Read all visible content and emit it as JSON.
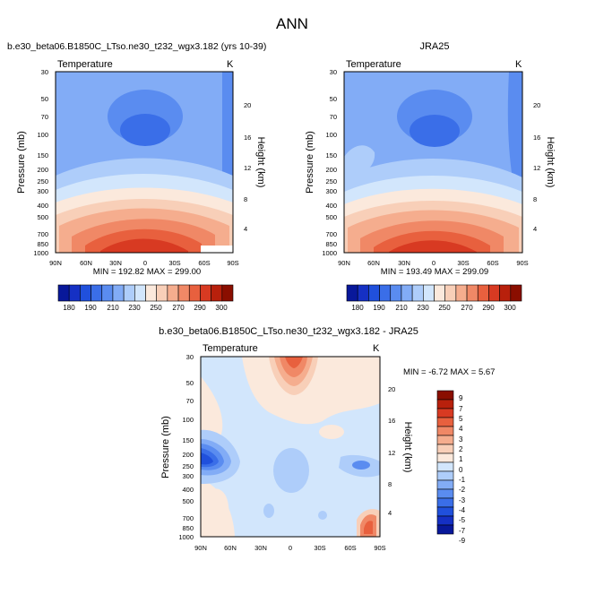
{
  "figure_title": "ANN",
  "chart_data": [
    {
      "type": "heatmap",
      "title": "b.e30_beta06.B1850C_LTso.ne30_t232_wgx3.182 (yrs 10-39)",
      "subtitle": "Temperature",
      "units": "K",
      "ylabel": "Pressure (mb)",
      "y2label": "Height (km)",
      "x_ticks": [
        "90N",
        "60N",
        "30N",
        "0",
        "30S",
        "60S",
        "90S"
      ],
      "x_range": [
        90,
        -90
      ],
      "y_ticks": [
        "30",
        "50",
        "70",
        "100",
        "150",
        "200",
        "250",
        "300",
        "400",
        "500",
        "700",
        "850",
        "1000"
      ],
      "y_range_mb": [
        30,
        1000
      ],
      "y2_ticks": [
        "20",
        "16",
        "12",
        "8",
        "4"
      ],
      "stats": "MIN = 192.82  MAX = 299.00",
      "min": 192.82,
      "max": 299.0
    },
    {
      "type": "heatmap",
      "title": "JRA25",
      "subtitle": "Temperature",
      "units": "K",
      "ylabel": "Pressure (mb)",
      "y2label": "Height (km)",
      "x_ticks": [
        "90N",
        "60N",
        "30N",
        "0",
        "30S",
        "60S",
        "90S"
      ],
      "x_range": [
        90,
        -90
      ],
      "y_ticks": [
        "30",
        "50",
        "70",
        "100",
        "150",
        "200",
        "250",
        "300",
        "400",
        "500",
        "700",
        "850",
        "1000"
      ],
      "y_range_mb": [
        30,
        1000
      ],
      "y2_ticks": [
        "20",
        "16",
        "12",
        "8",
        "4"
      ],
      "stats": "MIN = 193.49  MAX = 299.09",
      "min": 193.49,
      "max": 299.09
    },
    {
      "type": "heatmap",
      "title": "b.e30_beta06.B1850C_LTso.ne30_t232_wgx3.182 - JRA25",
      "subtitle": "Temperature",
      "units": "K",
      "ylabel": "Pressure (mb)",
      "y2label": "Height (km)",
      "x_ticks": [
        "90N",
        "60N",
        "30N",
        "0",
        "30S",
        "60S",
        "90S"
      ],
      "x_range": [
        90,
        -90
      ],
      "y_ticks": [
        "30",
        "50",
        "70",
        "100",
        "150",
        "200",
        "250",
        "300",
        "400",
        "500",
        "700",
        "850",
        "1000"
      ],
      "y_range_mb": [
        30,
        1000
      ],
      "y2_ticks": [
        "20",
        "16",
        "12",
        "8",
        "4"
      ],
      "stats": "MIN = -6.72  MAX =  5.67",
      "min": -6.72,
      "max": 5.67
    }
  ],
  "colorbar_temp": {
    "labels": [
      "180",
      "190",
      "210",
      "230",
      "250",
      "270",
      "290",
      "300"
    ],
    "colors": [
      "#08189a",
      "#1530c4",
      "#2050dc",
      "#3a6ee8",
      "#5a8cf0",
      "#82acf6",
      "#aecdfa",
      "#d2e6fc",
      "#fbe9dc",
      "#f8cfb8",
      "#f5ad8e",
      "#f08866",
      "#e8603e",
      "#d83a22",
      "#b8200c",
      "#8a0e00"
    ]
  },
  "colorbar_diff": {
    "labels": [
      "9",
      "7",
      "5",
      "4",
      "3",
      "2",
      "1",
      "0",
      "-1",
      "-2",
      "-3",
      "-4",
      "-5",
      "-7",
      "-9"
    ],
    "colors": [
      "#8a0e00",
      "#b8200c",
      "#d83a22",
      "#e8603e",
      "#f08866",
      "#f5ad8e",
      "#f8cfb8",
      "#fbe9dc",
      "#d2e6fc",
      "#aecdfa",
      "#82acf6",
      "#5a8cf0",
      "#3a6ee8",
      "#2050dc",
      "#1530c4",
      "#08189a"
    ]
  }
}
